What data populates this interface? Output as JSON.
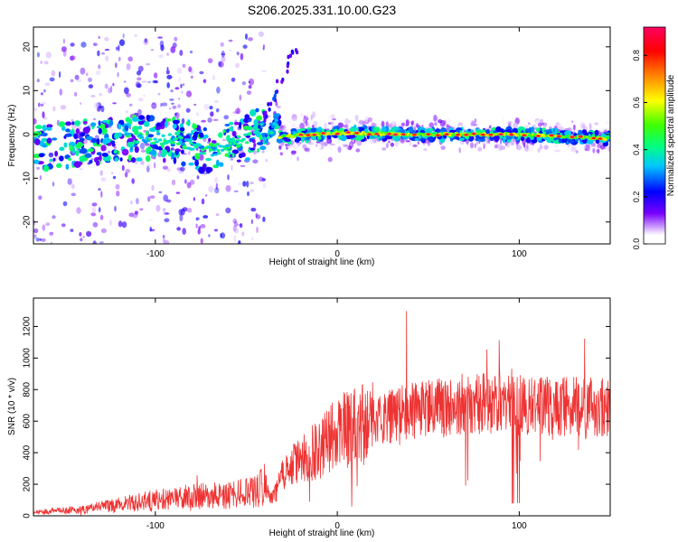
{
  "chart_data": [
    {
      "type": "heatmap",
      "title": "S206.2025.331.10.00.G23",
      "xlabel": "Height of straight line (km)",
      "ylabel": "Frequency (Hz)",
      "xlim": [
        -167,
        150
      ],
      "ylim": [
        -25,
        24.5
      ],
      "xticks": [
        -100,
        0,
        100
      ],
      "yticks": [
        -20,
        -10,
        0,
        10,
        20
      ],
      "colorbar": {
        "label": "Normalized spectral amplitude",
        "range": [
          0,
          0.92
        ],
        "ticks": [
          0.0,
          0.2,
          0.4,
          0.6,
          0.8
        ]
      },
      "ridge": {
        "segments": [
          {
            "x": [
              -160,
              -120,
              -90,
              -70,
              -50,
              -40
            ],
            "y": [
              -3,
              -1,
              -1,
              -4,
              -1,
              2
            ]
          },
          {
            "x": [
              -42,
              -32
            ],
            "y": [
              -3,
              4
            ]
          },
          {
            "x": [
              -32,
              0,
              50,
              100,
              150
            ],
            "y": [
              -0.5,
              0.3,
              0,
              0,
              -1
            ]
          }
        ],
        "peak_amplitude_range": [
          0.8,
          0.92
        ],
        "feature": "line with peaks above 0.8 from about -30 km to 150 km; scattered weak energy below -40 km"
      }
    },
    {
      "type": "line",
      "title": "",
      "xlabel": "Height of straight line (km)",
      "ylabel": "SNR (10 * v/v)",
      "xlim": [
        -167,
        150
      ],
      "ylim": [
        0,
        1380
      ],
      "xticks": [
        -100,
        0,
        100
      ],
      "yticks": [
        0,
        200,
        400,
        600,
        800,
        1000,
        1200
      ],
      "color": "#ee3333",
      "series": [
        {
          "name": "SNR",
          "x": [
            -167,
            -140,
            -120,
            -100,
            -80,
            -60,
            -45,
            -40,
            -35,
            -30,
            -20,
            -10,
            0,
            20,
            40,
            60,
            80,
            95,
            100,
            110,
            130,
            150
          ],
          "y": [
            20,
            40,
            70,
            100,
            120,
            130,
            150,
            200,
            120,
            260,
            360,
            420,
            530,
            600,
            660,
            700,
            720,
            740,
            700,
            700,
            690,
            680
          ]
        }
      ]
    }
  ]
}
